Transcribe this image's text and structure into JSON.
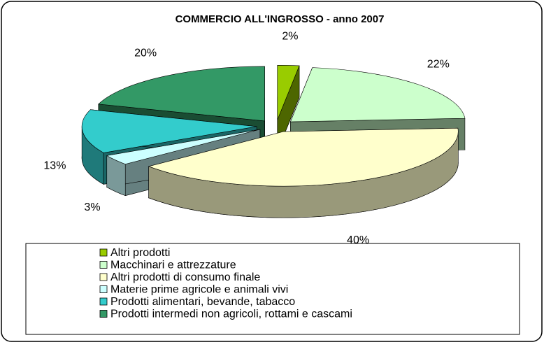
{
  "chart_data": {
    "type": "pie3d",
    "title": "COMMERCIO ALL'INGROSSO - anno 2007",
    "categories": [
      "Altri prodotti",
      "Macchinari e attrezzature",
      "Altri prodotti di consumo finale",
      "Materie prime agricole e animali vivi",
      "Prodotti alimentari, bevande, tabacco",
      "Prodotti intermedi non agricoli, rottami e cascami"
    ],
    "values": [
      2,
      22,
      40,
      3,
      13,
      20
    ],
    "value_labels": [
      "2%",
      "22%",
      "40%",
      "3%",
      "13%",
      "20%"
    ],
    "colors": [
      "#99cc00",
      "#ccffcc",
      "#ffffcc",
      "#ccffff",
      "#33cccc",
      "#339966"
    ],
    "legend": "bottom"
  }
}
